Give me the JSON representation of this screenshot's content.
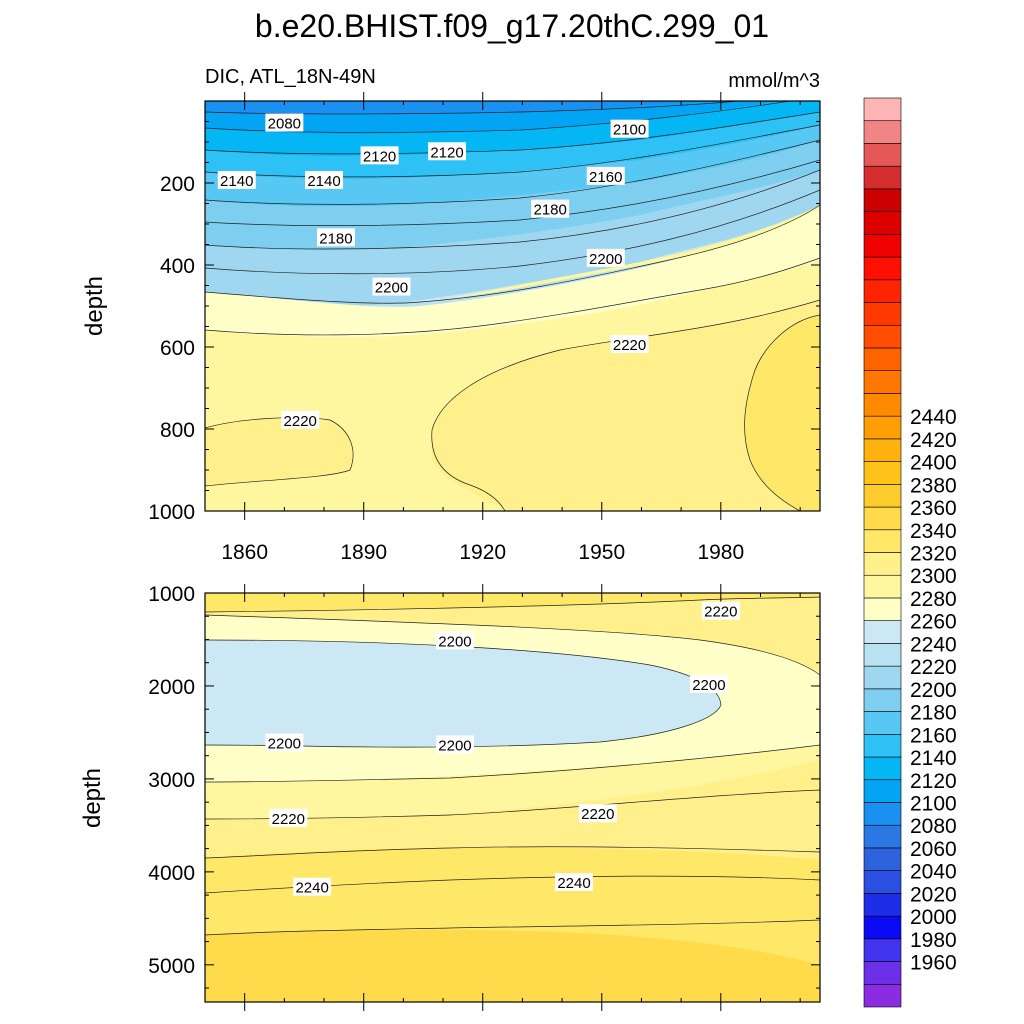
{
  "figure": {
    "title": "b.e20.BHIST.f09_g17.20thC.299_01",
    "subtitle_left": "DIC, ATL_18N-49N",
    "units": "mmol/m^3"
  },
  "colorbar": {
    "tick_labels": [
      "1960",
      "1980",
      "2000",
      "2020",
      "2040",
      "2060",
      "2080",
      "2100",
      "2120",
      "2140",
      "2160",
      "2180",
      "2200",
      "2220",
      "2240",
      "2260",
      "2280",
      "2300",
      "2320",
      "2340",
      "2360",
      "2380",
      "2400",
      "2420",
      "2440"
    ],
    "colors_bottom_to_top": [
      "#8B2BE2",
      "#6C30E8",
      "#4133EE",
      "#0A0AF5",
      "#1E2EE8",
      "#2B4FE0",
      "#2D63DC",
      "#2B78E4",
      "#1990F2",
      "#03A4F4",
      "#04B6F4",
      "#2DC1F5",
      "#57C8F3",
      "#7ECEF0",
      "#9ED7EF",
      "#B8E1F1",
      "#CBE8F4",
      "#FFFFC8",
      "#FFF6A0",
      "#FFF08C",
      "#FFE768",
      "#FFDA4A",
      "#FFCC2D",
      "#FFC21A",
      "#FFB20E",
      "#FF9E05",
      "#FF8A00",
      "#FF7700",
      "#FF6300",
      "#FF4E00",
      "#FF3A00",
      "#FF2400",
      "#FF1000",
      "#F00000",
      "#DD0000",
      "#CC0000",
      "#D32D2D",
      "#E55858",
      "#F28484",
      "#FCB4B4"
    ]
  },
  "chart_data": [
    {
      "type": "heatmap",
      "subtype": "filled-contour",
      "panel": "upper",
      "ylabel": "depth",
      "xlim": [
        1850,
        2005
      ],
      "ylim": [
        0,
        1000
      ],
      "y_inverted": true,
      "x_ticks": [
        "1860",
        "1890",
        "1920",
        "1950",
        "1980"
      ],
      "y_ticks": [
        "200",
        "400",
        "600",
        "800",
        "1000"
      ],
      "contour_labels": [
        {
          "text": "2080",
          "x": 1870,
          "y": 55
        },
        {
          "text": "2100",
          "x": 1957,
          "y": 70
        },
        {
          "text": "2120",
          "x": 1894,
          "y": 135
        },
        {
          "text": "2120",
          "x": 1911,
          "y": 125
        },
        {
          "text": "2140",
          "x": 1858,
          "y": 195
        },
        {
          "text": "2140",
          "x": 1880,
          "y": 195
        },
        {
          "text": "2160",
          "x": 1951,
          "y": 185
        },
        {
          "text": "2180",
          "x": 1883,
          "y": 335
        },
        {
          "text": "2180",
          "x": 1937,
          "y": 265
        },
        {
          "text": "2200",
          "x": 1897,
          "y": 455
        },
        {
          "text": "2200",
          "x": 1951,
          "y": 385
        },
        {
          "text": "2220",
          "x": 1874,
          "y": 780
        },
        {
          "text": "2220",
          "x": 1957,
          "y": 595
        }
      ]
    },
    {
      "type": "heatmap",
      "subtype": "filled-contour",
      "panel": "lower",
      "ylabel": "depth",
      "xlim": [
        1850,
        2005
      ],
      "ylim": [
        1000,
        5400
      ],
      "y_inverted": true,
      "y_ticks": [
        "1000",
        "2000",
        "3000",
        "4000",
        "5000"
      ],
      "contour_labels": [
        {
          "text": "2220",
          "x": 1980,
          "y": 1200
        },
        {
          "text": "2200",
          "x": 1913,
          "y": 1520
        },
        {
          "text": "2200",
          "x": 1977,
          "y": 1990
        },
        {
          "text": "2200",
          "x": 1870,
          "y": 2620
        },
        {
          "text": "2200",
          "x": 1913,
          "y": 2640
        },
        {
          "text": "2220",
          "x": 1871,
          "y": 3430
        },
        {
          "text": "2220",
          "x": 1949,
          "y": 3380
        },
        {
          "text": "2240",
          "x": 1877,
          "y": 4170
        },
        {
          "text": "2240",
          "x": 1943,
          "y": 4120
        }
      ]
    }
  ]
}
